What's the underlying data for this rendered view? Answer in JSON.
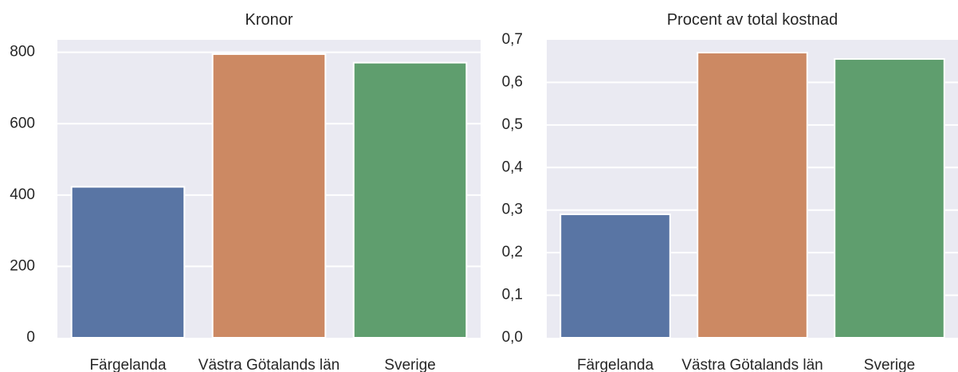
{
  "chart_data": [
    {
      "type": "bar",
      "title": "Kronor",
      "xlabel": "",
      "ylabel": "",
      "categories": [
        "Färgelanda",
        "Västra Götalands län",
        "Sverige"
      ],
      "values": [
        423,
        795,
        771
      ],
      "colors": [
        "#5975a4",
        "#cc8963",
        "#5f9e6e"
      ],
      "ylim": [
        0,
        835
      ],
      "yticks": [
        0,
        200,
        400,
        600,
        800
      ],
      "ytick_labels": [
        "0",
        "200",
        "400",
        "600",
        "800"
      ],
      "grid": true,
      "background": "#eaeaf2"
    },
    {
      "type": "bar",
      "title": "Procent av total kostnad",
      "xlabel": "",
      "ylabel": "",
      "categories": [
        "Färgelanda",
        "Västra Götalands län",
        "Sverige"
      ],
      "values": [
        0.29,
        0.67,
        0.655
      ],
      "colors": [
        "#5975a4",
        "#cc8963",
        "#5f9e6e"
      ],
      "ylim": [
        0,
        0.7
      ],
      "yticks": [
        0,
        0.1,
        0.2,
        0.3,
        0.4,
        0.5,
        0.6,
        0.7
      ],
      "ytick_labels": [
        "0,0",
        "0,1",
        "0,2",
        "0,3",
        "0,4",
        "0,5",
        "0,6",
        "0,7"
      ],
      "grid": true,
      "background": "#eaeaf2"
    }
  ]
}
